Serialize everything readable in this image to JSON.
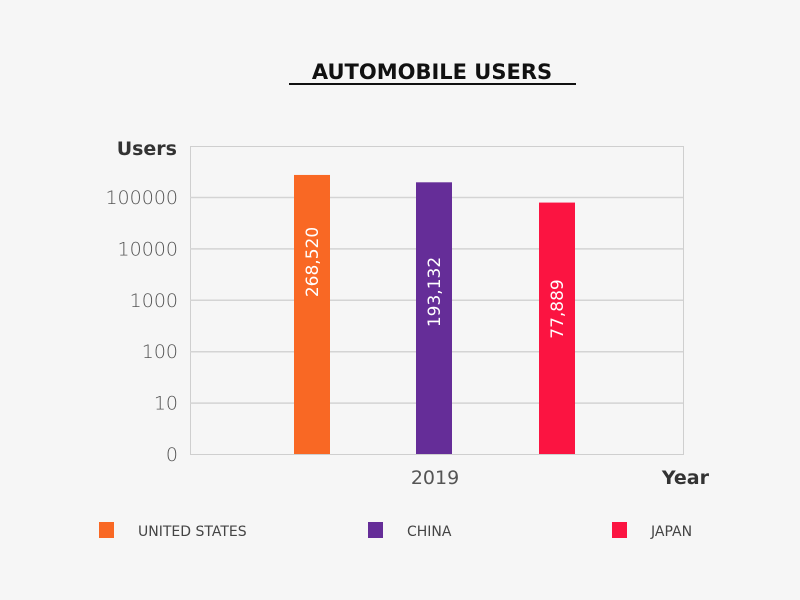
{
  "chart_data": {
    "type": "bar",
    "title": "AUTOMOBILE USERS",
    "xlabel": "Year",
    "ylabel": "Users",
    "y_scale": "log",
    "y_ticks": [
      0,
      10,
      100,
      1000,
      10000,
      100000
    ],
    "y_tick_labels": [
      "0",
      "10",
      "100",
      "1000",
      "10000",
      "100000"
    ],
    "ylim": [
      1,
      1000000
    ],
    "categories": [
      "2019"
    ],
    "grid": true,
    "legend_position": "bottom",
    "series": [
      {
        "name": "UNITED STATES",
        "color": "#f96824",
        "values": [
          268520
        ],
        "label": "268,520"
      },
      {
        "name": "CHINA",
        "color": "#652d98",
        "values": [
          193132
        ],
        "label": "193,132"
      },
      {
        "name": "JAPAN",
        "color": "#fb1441",
        "values": [
          77889
        ],
        "label": "77,889"
      }
    ]
  }
}
